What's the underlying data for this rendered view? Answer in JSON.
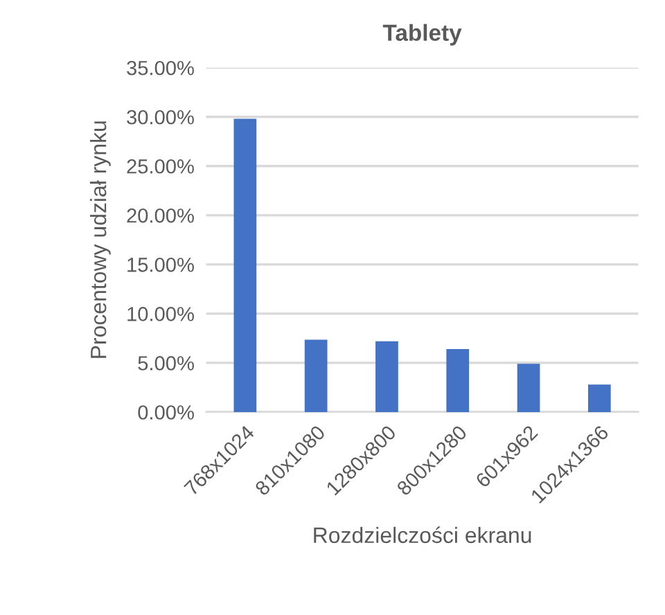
{
  "chart_data": {
    "type": "bar",
    "title": "Tablety",
    "xlabel": "Rozdzielczości ekranu",
    "ylabel": "Procentowy udział rynku",
    "categories": [
      "768x1024",
      "810x1080",
      "1280x800",
      "800x1280",
      "601x962",
      "1024x1366"
    ],
    "values": [
      29.8,
      7.35,
      7.2,
      6.4,
      4.9,
      2.8
    ],
    "color": "#4472c4",
    "ylim": [
      0,
      35
    ],
    "yticks": [
      {
        "value": 0,
        "label": "0.00%"
      },
      {
        "value": 5,
        "label": "5.00%"
      },
      {
        "value": 10,
        "label": "10.00%"
      },
      {
        "value": 15,
        "label": "15.00%"
      },
      {
        "value": 20,
        "label": "20.00%"
      },
      {
        "value": 25,
        "label": "25.00%"
      },
      {
        "value": 30,
        "label": "30.00%"
      },
      {
        "value": 35,
        "label": "35.00%"
      }
    ],
    "grid": "y"
  }
}
